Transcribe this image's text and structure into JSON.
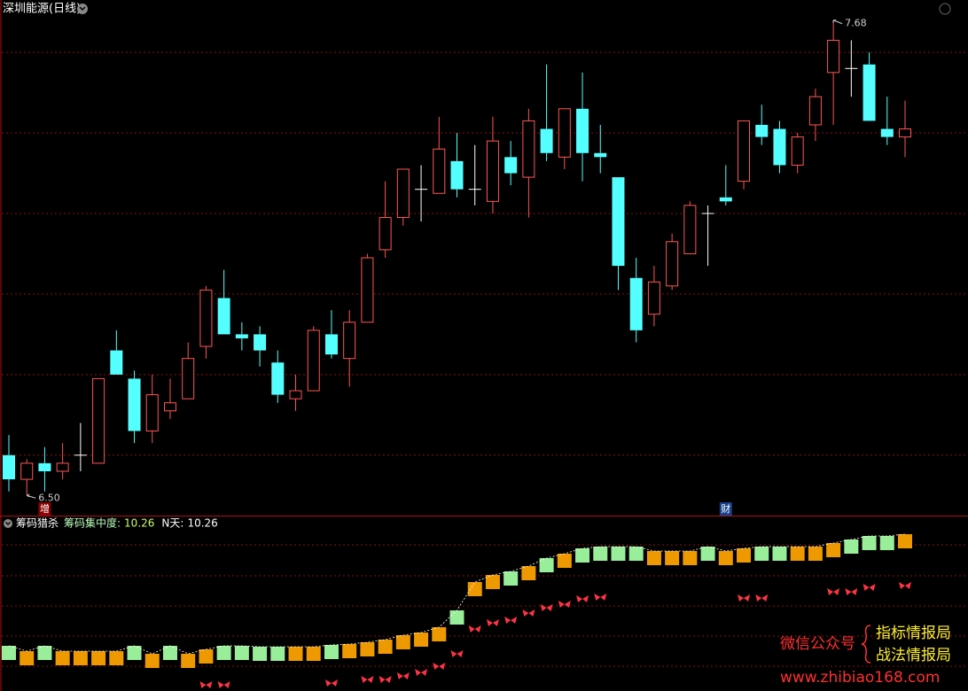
{
  "header": {
    "title": "深圳能源(日线)"
  },
  "chart_data": [
    {
      "type": "candlestick",
      "open": [
        6.6,
        6.54,
        6.58,
        6.56,
        6.6,
        6.58,
        6.86,
        6.79,
        6.66,
        6.71,
        6.74,
        6.87,
        6.99,
        6.9,
        6.9,
        6.83,
        6.74,
        6.76,
        6.9,
        6.84,
        6.93,
        7.11,
        7.19,
        7.26,
        7.25,
        7.33,
        7.26,
        7.23,
        7.34,
        7.29,
        7.41,
        7.34,
        7.46,
        7.35,
        7.29,
        7.04,
        6.95,
        7.02,
        7.1,
        7.2,
        7.24,
        7.28,
        7.42,
        7.41,
        7.32,
        7.42,
        7.55,
        7.56,
        7.57,
        7.41,
        7.39
      ],
      "high": [
        6.65,
        6.59,
        6.62,
        6.63,
        6.68,
        6.79,
        6.91,
        6.81,
        6.8,
        6.79,
        6.88,
        7.02,
        7.06,
        6.93,
        6.92,
        6.86,
        6.8,
        6.92,
        6.96,
        6.96,
        7.1,
        7.28,
        7.31,
        7.32,
        7.44,
        7.4,
        7.37,
        7.44,
        7.38,
        7.46,
        7.57,
        7.46,
        7.55,
        7.42,
        7.29,
        7.09,
        7.07,
        7.15,
        7.23,
        7.22,
        7.32,
        7.43,
        7.47,
        7.43,
        7.4,
        7.51,
        7.68,
        7.63,
        7.6,
        7.49,
        7.48
      ],
      "low": [
        6.51,
        6.5,
        6.51,
        6.54,
        6.56,
        6.58,
        6.8,
        6.63,
        6.63,
        6.69,
        6.74,
        6.84,
        6.9,
        6.86,
        6.82,
        6.73,
        6.71,
        6.76,
        6.84,
        6.77,
        6.93,
        7.09,
        7.17,
        7.18,
        7.25,
        7.24,
        7.22,
        7.2,
        7.27,
        7.19,
        7.33,
        7.31,
        7.28,
        7.3,
        7.01,
        6.88,
        6.92,
        7.01,
        7.1,
        7.07,
        7.22,
        7.26,
        7.37,
        7.3,
        7.3,
        7.38,
        7.42,
        7.49,
        7.43,
        7.37,
        7.34
      ],
      "close": [
        6.54,
        6.58,
        6.56,
        6.58,
        6.6,
        6.79,
        6.8,
        6.66,
        6.75,
        6.73,
        6.84,
        7.01,
        6.9,
        6.89,
        6.86,
        6.75,
        6.76,
        6.91,
        6.85,
        6.93,
        7.09,
        7.19,
        7.31,
        7.26,
        7.36,
        7.26,
        7.26,
        7.38,
        7.3,
        7.43,
        7.35,
        7.46,
        7.35,
        7.34,
        7.07,
        6.91,
        7.03,
        7.13,
        7.22,
        7.2,
        7.23,
        7.43,
        7.39,
        7.32,
        7.39,
        7.49,
        7.63,
        7.56,
        7.43,
        7.39,
        7.41
      ],
      "up_color": "#ff5555",
      "down_color": "#54ffff",
      "flat_color": "#ffffff",
      "ylim": [
        6.45,
        7.73
      ],
      "yticks": [
        6.6,
        6.8,
        7.0,
        7.2,
        7.4,
        7.6
      ],
      "grid": true,
      "max_label": "7.68",
      "min_label": "6.50",
      "event_labels": [
        null,
        null,
        "增",
        null,
        null,
        null,
        null,
        null,
        null,
        null,
        null,
        null,
        null,
        null,
        null,
        null,
        null,
        null,
        null,
        null,
        null,
        null,
        null,
        null,
        null,
        null,
        null,
        null,
        null,
        null,
        null,
        null,
        null,
        null,
        null,
        null,
        null,
        null,
        null,
        null,
        "财",
        null,
        null,
        null,
        null,
        null,
        null,
        null,
        null,
        null,
        null
      ]
    },
    {
      "type": "square",
      "title": "筹码猎杀",
      "readouts": [
        {
          "name": "筹码集中度:",
          "value": 10.26
        },
        {
          "name": "N天:",
          "value": 10.26
        }
      ],
      "values": [
        9.0,
        8.94,
        9.0,
        8.94,
        8.94,
        8.94,
        8.94,
        9.0,
        8.91,
        9.0,
        8.91,
        8.96,
        9.0,
        9.0,
        8.99,
        8.99,
        8.99,
        8.99,
        9.01,
        9.02,
        9.04,
        9.07,
        9.12,
        9.15,
        9.21,
        9.4,
        9.72,
        9.8,
        9.84,
        9.9,
        9.99,
        10.04,
        10.1,
        10.12,
        10.12,
        10.12,
        10.07,
        10.07,
        10.07,
        10.12,
        10.07,
        10.1,
        10.12,
        10.12,
        10.12,
        10.12,
        10.16,
        10.2,
        10.24,
        10.24,
        10.26
      ],
      "colors": [
        "#99ee99",
        "#ee9900",
        "#99ee99",
        "#ee9900",
        "#ee9900",
        "#ee9900",
        "#ee9900",
        "#99ee99",
        "#ee9900",
        "#99ee99",
        "#ee9900",
        "#ee9900",
        "#99ee99",
        "#99ee99",
        "#99ee99",
        "#99ee99",
        "#ee9900",
        "#ee9900",
        "#99ee99",
        "#ee9900",
        "#ee9900",
        "#ee9900",
        "#ee9900",
        "#ee9900",
        "#ee9900",
        "#99ee99",
        "#ee9900",
        "#ee9900",
        "#99ee99",
        "#ee9900",
        "#99ee99",
        "#ee9900",
        "#99ee99",
        "#99ee99",
        "#99ee99",
        "#99ee99",
        "#ee9900",
        "#ee9900",
        "#ee9900",
        "#99ee99",
        "#ee9900",
        "#ee9900",
        "#99ee99",
        "#99ee99",
        "#ee9900",
        "#ee9900",
        "#ee9900",
        "#99ee99",
        "#99ee99",
        "#99ee99",
        "#ee9900"
      ],
      "markers": [
        null,
        null,
        null,
        null,
        null,
        null,
        null,
        null,
        null,
        null,
        null,
        8.64,
        8.64,
        null,
        null,
        null,
        null,
        null,
        8.66,
        null,
        8.7,
        8.7,
        8.74,
        8.78,
        8.85,
        8.99,
        9.27,
        9.34,
        9.37,
        9.45,
        9.51,
        9.55,
        9.61,
        9.63,
        null,
        null,
        null,
        null,
        null,
        null,
        null,
        9.62,
        9.62,
        null,
        null,
        null,
        9.69,
        9.69,
        9.74,
        null,
        9.76
      ],
      "marker_color": "#ff3344",
      "ylim": [
        8.57,
        10.54
      ],
      "yticks": [
        8.85,
        9.19,
        9.53,
        9.87,
        10.22
      ],
      "grid": true
    }
  ],
  "watermark": {
    "line1": "微信公众号",
    "line2": "指标情报局",
    "line3": "战法情报局",
    "url": "www.zhibiao168.com"
  }
}
